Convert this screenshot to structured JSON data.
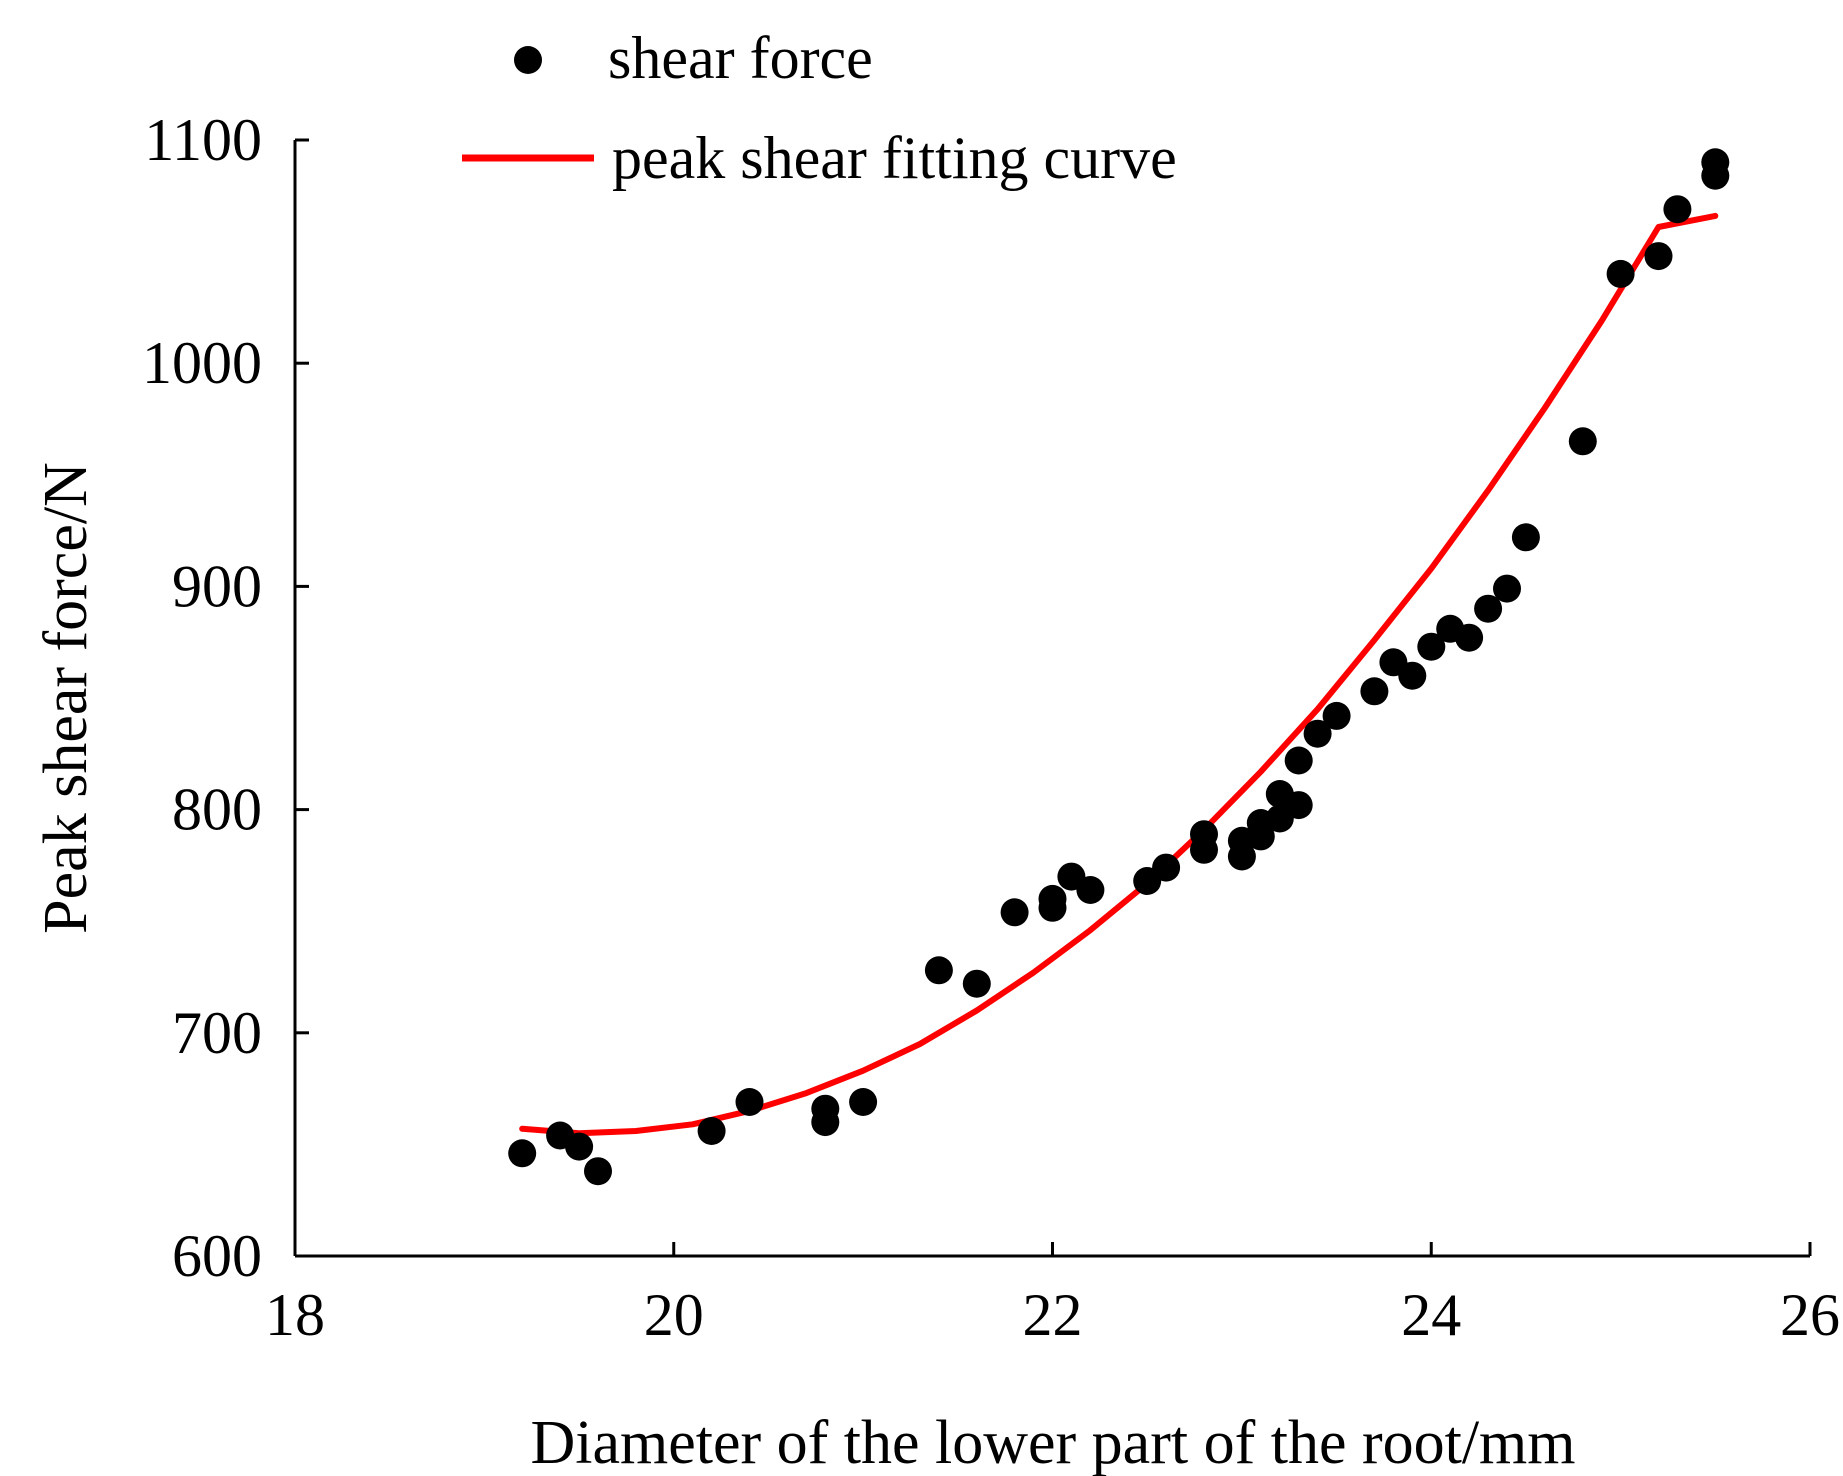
{
  "chart_data": {
    "type": "scatter",
    "title": "",
    "xlabel": "Diameter of the lower part of the root/mm",
    "ylabel": "Peak shear force/N",
    "xlim": [
      18,
      26
    ],
    "ylim": [
      600,
      1100
    ],
    "x_ticks": [
      "18",
      "20",
      "22",
      "24",
      "26"
    ],
    "y_ticks": [
      "600",
      "700",
      "800",
      "900",
      "1000",
      "1100"
    ],
    "grid": false,
    "legend_position": "top-center",
    "series": [
      {
        "name": "shear force",
        "kind": "scatter",
        "color": "#000000",
        "points": [
          [
            19.2,
            646
          ],
          [
            19.4,
            654
          ],
          [
            19.5,
            649
          ],
          [
            19.6,
            638
          ],
          [
            20.2,
            656
          ],
          [
            20.4,
            669
          ],
          [
            20.8,
            666
          ],
          [
            20.8,
            660
          ],
          [
            21.0,
            669
          ],
          [
            21.4,
            728
          ],
          [
            21.6,
            722
          ],
          [
            21.8,
            754
          ],
          [
            22.0,
            756
          ],
          [
            22.0,
            760
          ],
          [
            22.1,
            770
          ],
          [
            22.2,
            764
          ],
          [
            22.5,
            768
          ],
          [
            22.6,
            774
          ],
          [
            22.8,
            782
          ],
          [
            22.8,
            789
          ],
          [
            23.0,
            779
          ],
          [
            23.0,
            786
          ],
          [
            23.1,
            788
          ],
          [
            23.1,
            794
          ],
          [
            23.2,
            796
          ],
          [
            23.2,
            807
          ],
          [
            23.3,
            802
          ],
          [
            23.3,
            822
          ],
          [
            23.4,
            834
          ],
          [
            23.5,
            842
          ],
          [
            23.7,
            853
          ],
          [
            23.8,
            866
          ],
          [
            23.9,
            860
          ],
          [
            24.0,
            873
          ],
          [
            24.1,
            881
          ],
          [
            24.2,
            877
          ],
          [
            24.3,
            890
          ],
          [
            24.4,
            899
          ],
          [
            24.5,
            922
          ],
          [
            24.8,
            965
          ],
          [
            25.0,
            1040
          ],
          [
            25.2,
            1048
          ],
          [
            25.3,
            1069
          ],
          [
            25.5,
            1084
          ],
          [
            25.5,
            1090
          ]
        ]
      },
      {
        "name": "peak shear fitting curve",
        "kind": "line",
        "color": "#ff0000",
        "x": [
          19.2,
          19.5,
          19.8,
          20.1,
          20.4,
          20.7,
          21.0,
          21.3,
          21.6,
          21.9,
          22.2,
          22.5,
          22.8,
          23.1,
          23.4,
          23.7,
          24.0,
          24.3,
          24.6,
          24.9,
          25.2,
          25.5
        ],
        "y": [
          657,
          655,
          656,
          659,
          665,
          673,
          683,
          695,
          710,
          727,
          746,
          767,
          791,
          817,
          845,
          876,
          908,
          943,
          980,
          1019,
          1061,
          1066
        ]
      }
    ]
  }
}
